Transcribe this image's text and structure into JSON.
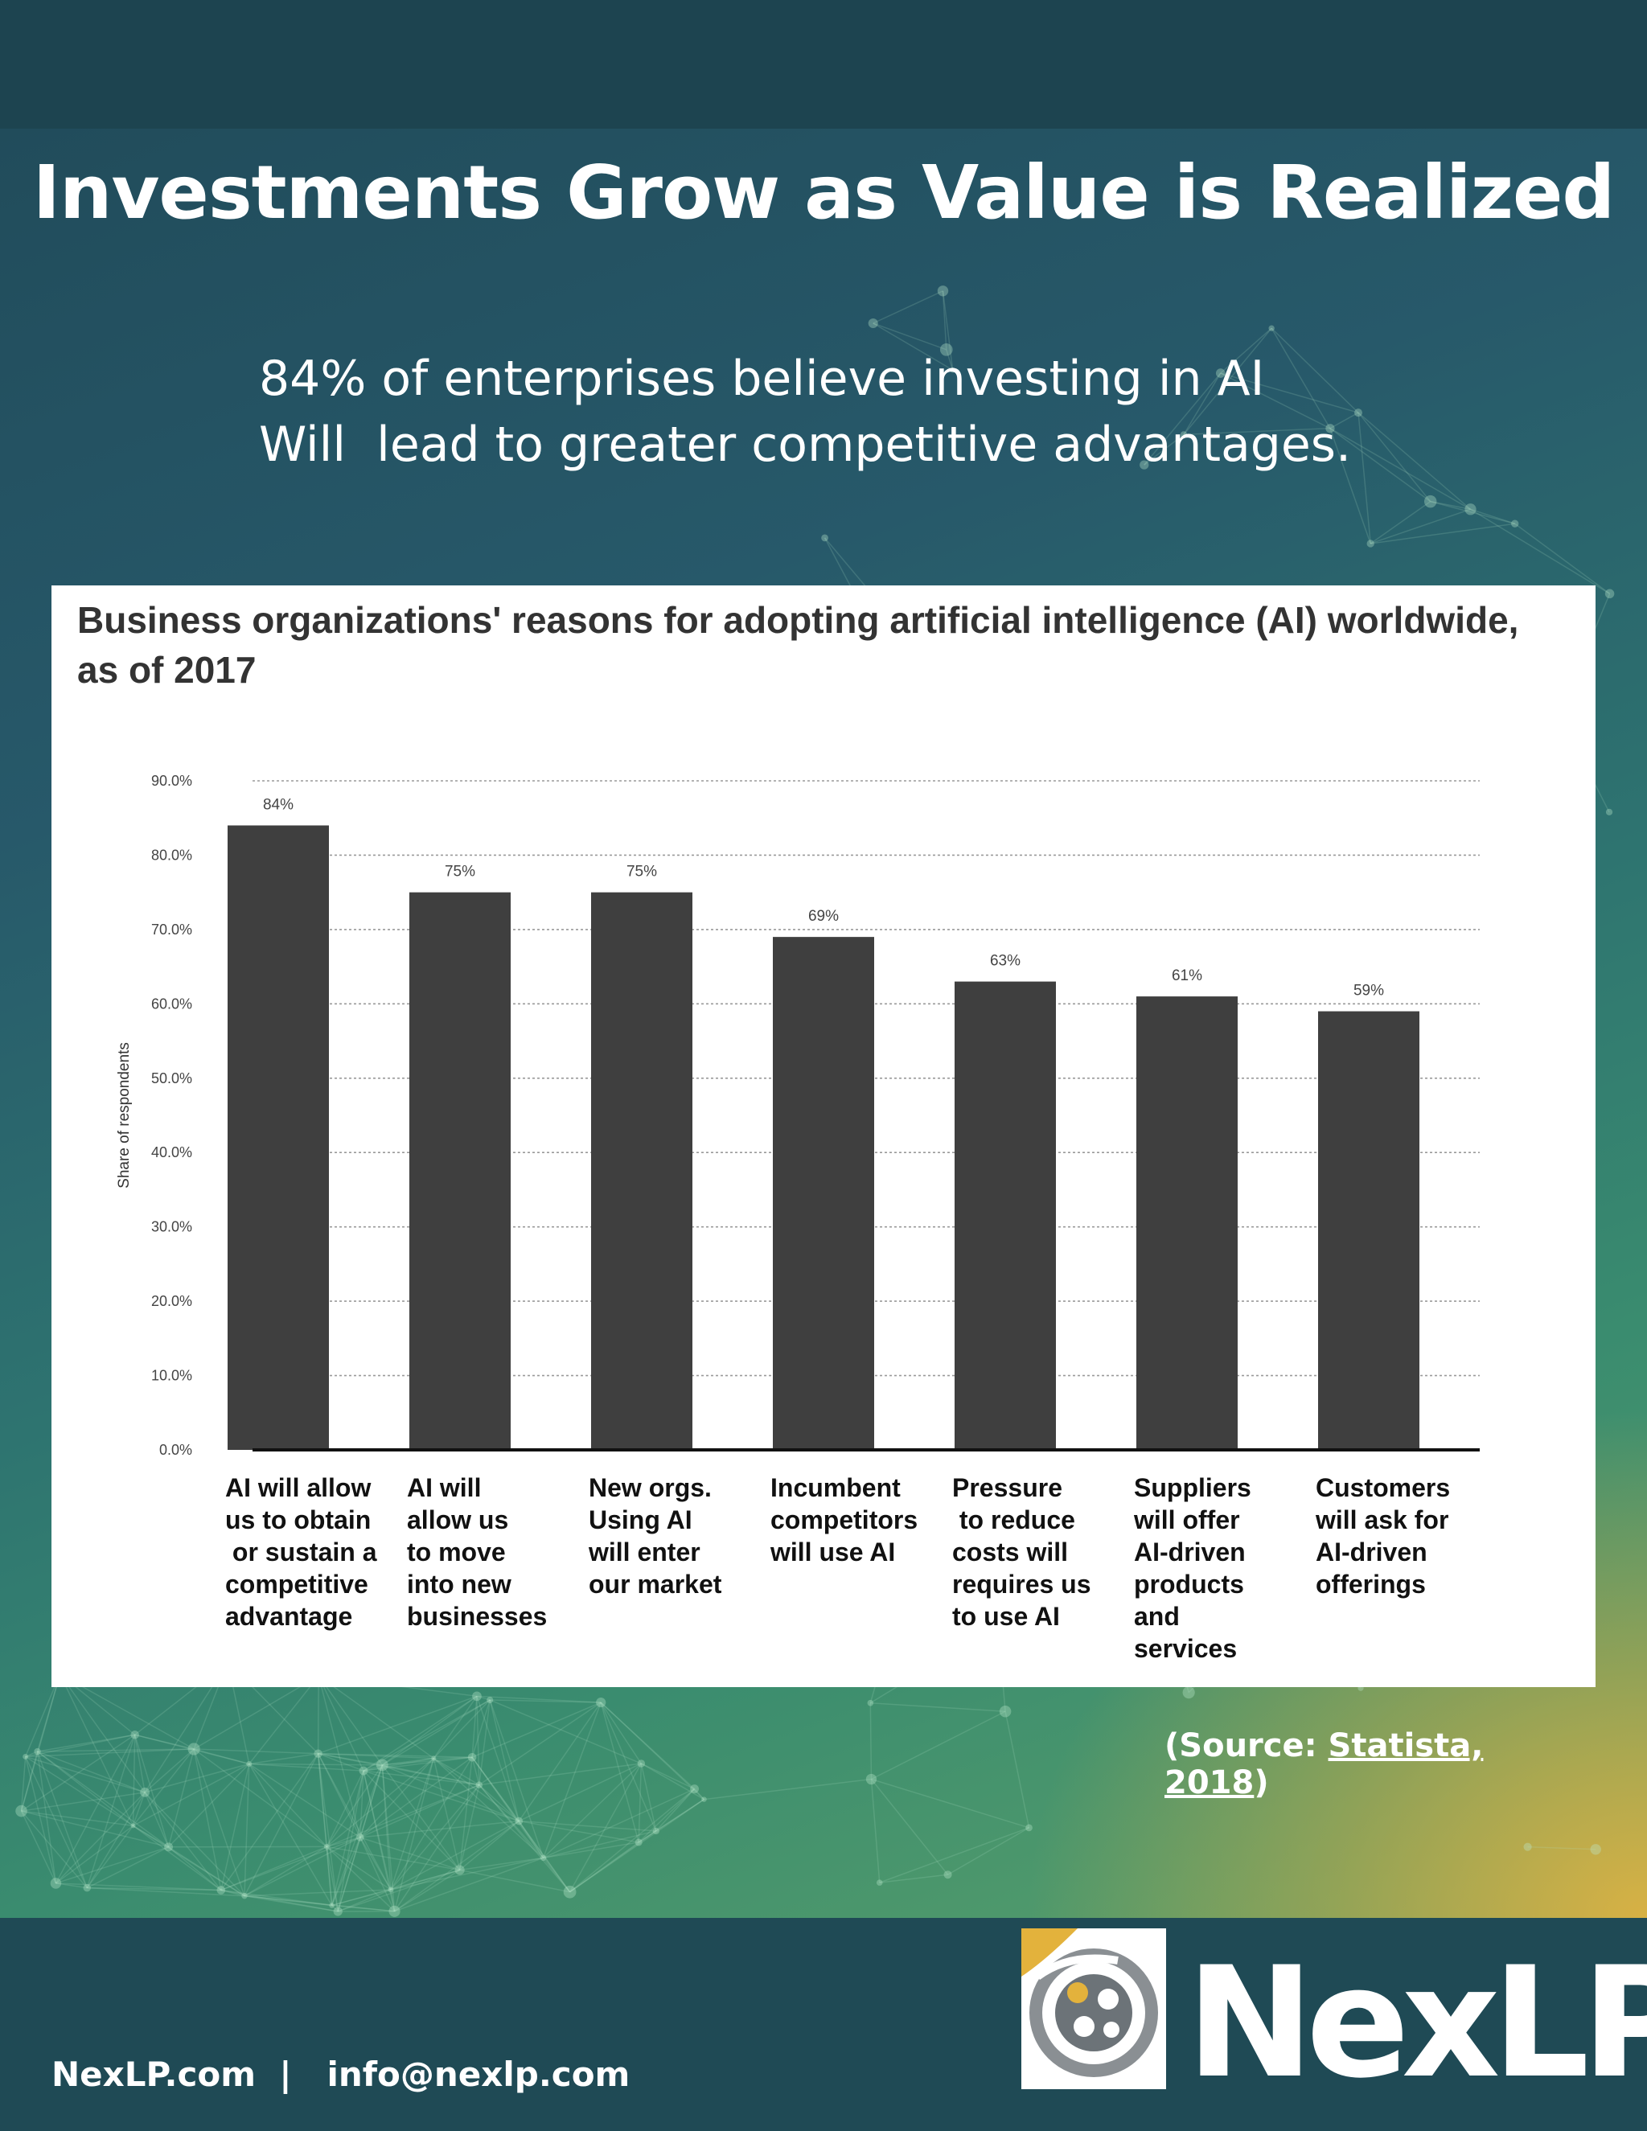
{
  "page": {
    "title": "Investments Grow as Value is Realized",
    "subtitle_lines": [
      "84% of enterprises believe investing in AI",
      "Will  lead to greater competitive advantages."
    ],
    "source_prefix": "(Source: ",
    "source_link": "Statista, 2018",
    "source_suffix": ")"
  },
  "footer": {
    "contact": "NexLP.com  |   info@nexlp.com",
    "logo_text": "NexLP"
  },
  "colors": {
    "bar": "#3f3f3f",
    "accent": "#e3b23c",
    "background": "#1f4a55"
  },
  "chart_data": {
    "type": "bar",
    "title": "Business organizations' reasons for adopting artificial intelligence (AI) worldwide, as of 2017",
    "ylabel": "Share of respondents",
    "xlabel": "",
    "ylim": [
      0,
      90
    ],
    "yticks": [
      "0.0%",
      "10.0%",
      "20.0%",
      "30.0%",
      "40.0%",
      "50.0%",
      "60.0%",
      "70.0%",
      "80.0%",
      "90.0%"
    ],
    "grid": true,
    "categories": [
      "AI will allow\nus to obtain\n or sustain a\ncompetitive\nadvantage",
      "AI will\nallow us\nto move\ninto new\nbusinesses",
      "New orgs.\nUsing AI\nwill enter\nour market",
      "Incumbent\ncompetitors\nwill use AI",
      "Pressure\n to reduce\ncosts will\nrequires us\nto use AI",
      "Suppliers\nwill offer\nAI-driven\nproducts\nand\nservices",
      "Customers\nwill ask for\nAI-driven\nofferings"
    ],
    "values": [
      84,
      75,
      75,
      69,
      63,
      61,
      59
    ],
    "data_labels": [
      "84%",
      "75%",
      "75%",
      "69%",
      "63%",
      "61%",
      "59%"
    ]
  }
}
